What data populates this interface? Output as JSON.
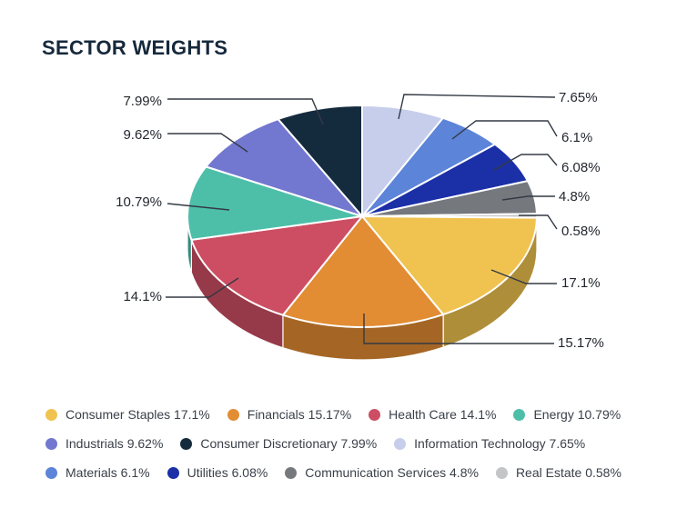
{
  "header": {
    "title": "SECTOR WEIGHTS"
  },
  "chart_data": {
    "type": "pie",
    "style": "3d",
    "title": "SECTOR WEIGHTS",
    "unit": "%",
    "direction": "clockwise",
    "start_angle": "top",
    "slices": [
      {
        "name": "Consumer Staples",
        "value": 17.1,
        "label": "17.1%",
        "color": "#F0C350"
      },
      {
        "name": "Financials",
        "value": 15.17,
        "label": "15.17%",
        "color": "#E28C33"
      },
      {
        "name": "Health Care",
        "value": 14.1,
        "label": "14.1%",
        "color": "#CD4E63"
      },
      {
        "name": "Energy",
        "value": 10.79,
        "label": "10.79%",
        "color": "#4DBFA9"
      },
      {
        "name": "Industrials",
        "value": 9.62,
        "label": "9.62%",
        "color": "#7277CF"
      },
      {
        "name": "Consumer Discretionary",
        "value": 7.99,
        "label": "7.99%",
        "color": "#142B3E"
      },
      {
        "name": "Information Technology",
        "value": 7.65,
        "label": "7.65%",
        "color": "#C7CEEC"
      },
      {
        "name": "Materials",
        "value": 6.1,
        "label": "6.1%",
        "color": "#5C84D8"
      },
      {
        "name": "Utilities",
        "value": 6.08,
        "label": "6.08%",
        "color": "#1B30A7"
      },
      {
        "name": "Communication Services",
        "value": 4.8,
        "label": "4.8%",
        "color": "#75797E"
      },
      {
        "name": "Real Estate",
        "value": 0.58,
        "label": "0.58%",
        "color": "#C4C5C7"
      }
    ],
    "order_clockwise": [
      "Information Technology",
      "Materials",
      "Utilities",
      "Communication Services",
      "Real Estate",
      "Consumer Staples",
      "Financials",
      "Health Care",
      "Energy",
      "Industrials",
      "Consumer Discretionary"
    ],
    "legend_position": "bottom",
    "legend_rows": [
      [
        "Consumer Staples",
        "Financials",
        "Health Care",
        "Energy"
      ],
      [
        "Industrials",
        "Consumer Discretionary",
        "Information Technology"
      ],
      [
        "Materials",
        "Utilities",
        "Communication Services",
        "Real Estate"
      ]
    ]
  }
}
